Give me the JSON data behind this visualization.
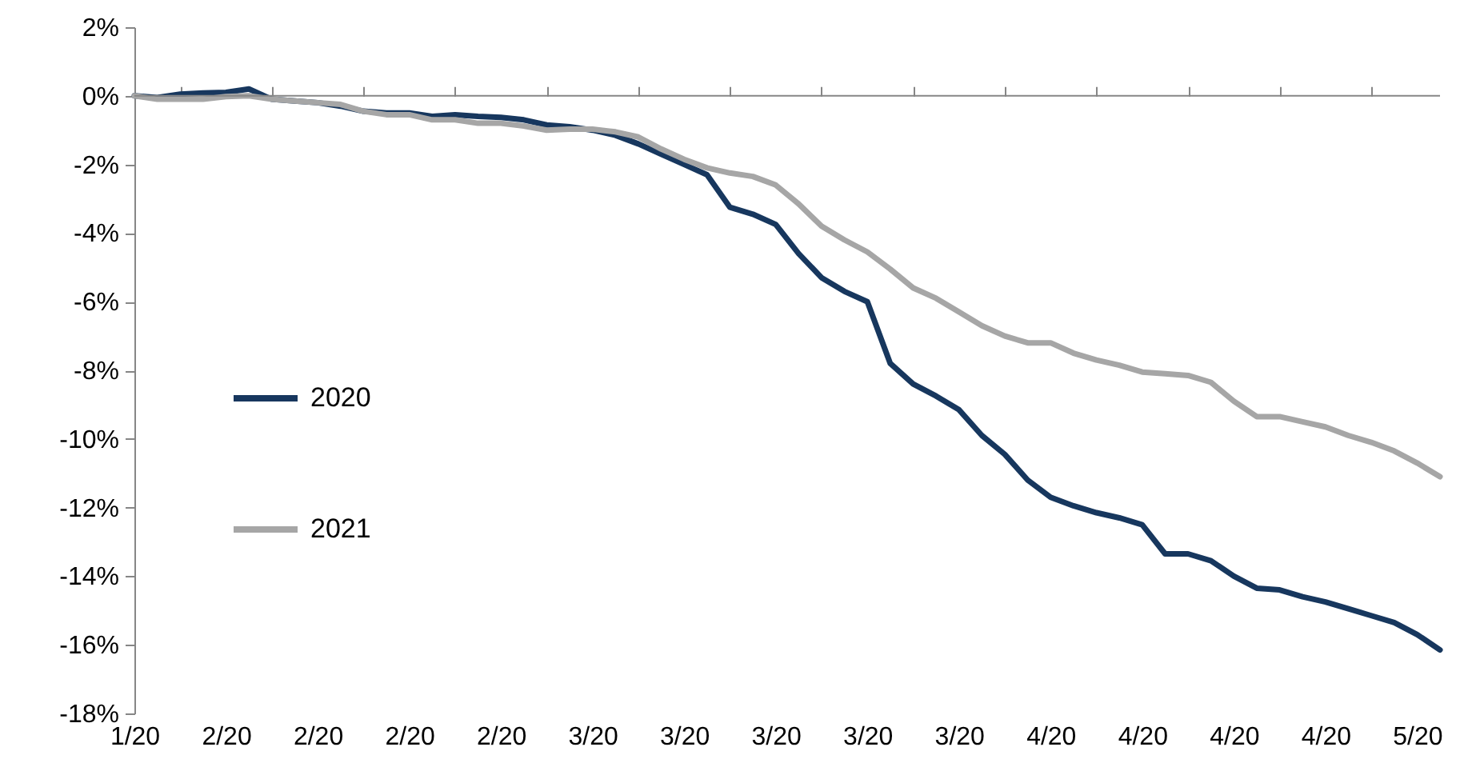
{
  "chart_data": {
    "type": "line",
    "categories": [
      "1/20",
      null,
      null,
      null,
      "2/20",
      null,
      null,
      null,
      "2/20",
      null,
      null,
      null,
      "2/20",
      null,
      null,
      null,
      "2/20",
      null,
      null,
      null,
      "3/20",
      null,
      null,
      null,
      "3/20",
      null,
      null,
      null,
      "3/20",
      null,
      null,
      null,
      "3/20",
      null,
      null,
      null,
      "3/20",
      null,
      null,
      null,
      "4/20",
      null,
      null,
      null,
      "4/20",
      null,
      null,
      null,
      "4/20",
      null,
      null,
      null,
      "4/20",
      null,
      null,
      null,
      "5/20",
      null
    ],
    "ylim": [
      -18,
      2
    ],
    "yticks": [
      {
        "value": 2,
        "label": "2%"
      },
      {
        "value": 0,
        "label": "0%"
      },
      {
        "value": -2,
        "label": "-2%"
      },
      {
        "value": -4,
        "label": "-4%"
      },
      {
        "value": -6,
        "label": "-6%"
      },
      {
        "value": -8,
        "label": "-8%"
      },
      {
        "value": -10,
        "label": "-10%"
      },
      {
        "value": -12,
        "label": "-12%"
      },
      {
        "value": -14,
        "label": "-14%"
      },
      {
        "value": -16,
        "label": "-16%"
      },
      {
        "value": -18,
        "label": "-18%"
      }
    ],
    "ref_lines": [
      {
        "axis": "y",
        "value": 0,
        "color": "#868686"
      }
    ],
    "grid": false,
    "legend": "left",
    "marker": "none",
    "line_style": "solid",
    "series": [
      {
        "name": "2020",
        "color": "#17375e",
        "values": [
          0,
          -0.05,
          0.05,
          0.08,
          0.1,
          0.2,
          -0.1,
          -0.15,
          -0.2,
          -0.3,
          -0.45,
          -0.5,
          -0.5,
          -0.6,
          -0.55,
          -0.6,
          -0.63,
          -0.7,
          -0.85,
          -0.9,
          -1.0,
          -1.15,
          -1.4,
          -1.7,
          -2.0,
          -2.3,
          -3.25,
          -3.45,
          -3.75,
          -4.6,
          -5.3,
          -5.7,
          -6.0,
          -7.8,
          -8.4,
          -8.75,
          -9.15,
          -9.9,
          -10.45,
          -11.2,
          -11.7,
          -11.95,
          -12.15,
          -12.3,
          -12.5,
          -13.35,
          -13.35,
          -13.55,
          -14.0,
          -14.35,
          -14.4,
          -14.6,
          -14.75,
          -14.95,
          -15.15,
          -15.35,
          -15.7,
          -16.15
        ]
      },
      {
        "name": "2021",
        "color": "#a6a6a6",
        "values": [
          0,
          -0.1,
          -0.1,
          -0.1,
          -0.02,
          0.0,
          -0.1,
          -0.15,
          -0.2,
          -0.25,
          -0.45,
          -0.55,
          -0.55,
          -0.7,
          -0.7,
          -0.8,
          -0.8,
          -0.88,
          -1.0,
          -0.97,
          -0.97,
          -1.05,
          -1.2,
          -1.55,
          -1.85,
          -2.1,
          -2.25,
          -2.35,
          -2.6,
          -3.15,
          -3.8,
          -4.2,
          -4.55,
          -5.05,
          -5.6,
          -5.9,
          -6.3,
          -6.7,
          -7.0,
          -7.2,
          -7.2,
          -7.5,
          -7.7,
          -7.85,
          -8.05,
          -8.1,
          -8.15,
          -8.35,
          -8.9,
          -9.35,
          -9.35,
          -9.5,
          -9.65,
          -9.9,
          -10.1,
          -10.35,
          -10.7,
          -11.1
        ]
      }
    ]
  }
}
